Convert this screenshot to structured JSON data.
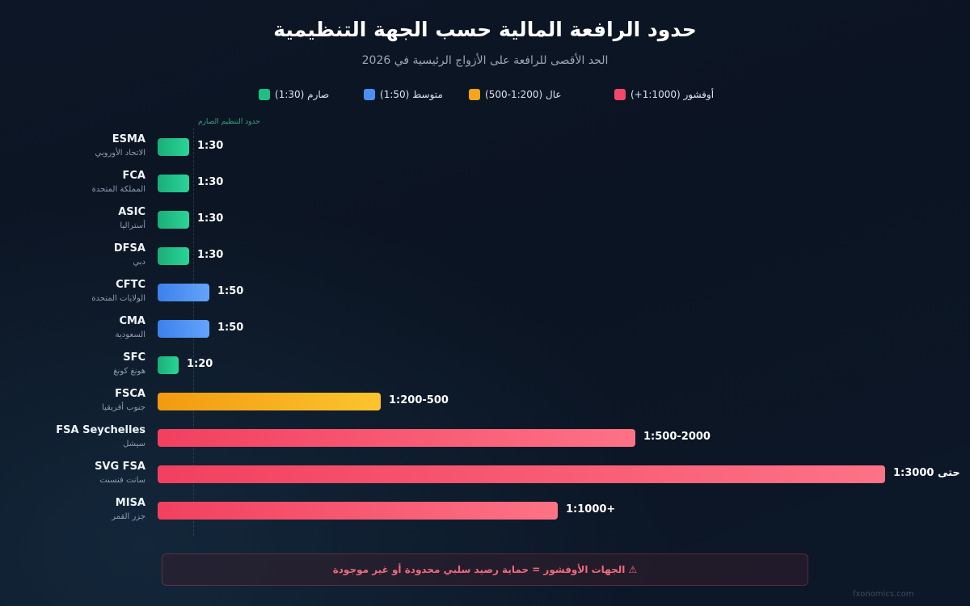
{
  "header": {
    "title": "حدود الرافعة المالية حسب الجهة التنظيمية",
    "subtitle": "الحد الأقصى للرافعة على الأزواج الرئيسية في 2026"
  },
  "legend": [
    {
      "label": "صارم (1:30)",
      "color": "#1fbf83"
    },
    {
      "label": "متوسط (1:50)",
      "color": "#4b8ff3"
    },
    {
      "label": "عال (1:200-500)",
      "color": "#f5a516"
    },
    {
      "label": "أوفشور (1:1000+)",
      "color": "#f2486a"
    }
  ],
  "chart_data": {
    "type": "bar",
    "orientation": "horizontal",
    "reference_line_label": "حدود التنظيم الصارم",
    "reference_value": 30,
    "categories": [
      "ESMA",
      "FCA",
      "ASIC",
      "DFSA",
      "CFTC",
      "CMA",
      "SFC",
      "FSCA",
      "FSA Seychelles",
      "SVG FSA",
      "MISA"
    ],
    "rows": [
      {
        "name": "ESMA",
        "sub": "الاتحاد الأوروبي",
        "value": 30,
        "label": "1:30",
        "tier": "strict"
      },
      {
        "name": "FCA",
        "sub": "المملكة المتحدة",
        "value": 30,
        "label": "1:30",
        "tier": "strict"
      },
      {
        "name": "ASIC",
        "sub": "أستراليا",
        "value": 30,
        "label": "1:30",
        "tier": "strict"
      },
      {
        "name": "DFSA",
        "sub": "دبي",
        "value": 30,
        "label": "1:30",
        "tier": "strict"
      },
      {
        "name": "CFTC",
        "sub": "الولايات المتحدة",
        "value": 50,
        "label": "1:50",
        "tier": "medium"
      },
      {
        "name": "CMA",
        "sub": "السعودية",
        "value": 50,
        "label": "1:50",
        "tier": "medium"
      },
      {
        "name": "SFC",
        "sub": "هونغ كونغ",
        "value": 20,
        "label": "1:20",
        "tier": "strict"
      },
      {
        "name": "FSCA",
        "sub": "جنوب أفريقيا",
        "value": 215,
        "label": "1:200-500",
        "tier": "high"
      },
      {
        "name": "FSA Seychelles",
        "sub": "سيشل",
        "value": 460,
        "label": "1:500-2000",
        "tier": "offshore"
      },
      {
        "name": "SVG FSA",
        "sub": "سانت فنسنت",
        "value": 700,
        "label": "حتى 1:3000",
        "tier": "offshore"
      },
      {
        "name": "MISA",
        "sub": "جزر القمر",
        "value": 385,
        "label": "1:1000+",
        "tier": "offshore"
      }
    ],
    "tier_colors": {
      "strict": [
        "#1aae78",
        "#2bd496"
      ],
      "medium": [
        "#3d80ec",
        "#64a4fb"
      ],
      "high": [
        "#f29a10",
        "#fbc52e"
      ],
      "offshore": [
        "#f2405f",
        "#fd7286"
      ]
    }
  },
  "footer": {
    "warning": "⚠ الجهات الأوفشور = حماية رصيد سلبي محدودة أو غير موجودة"
  },
  "watermark": "fxonomics.com"
}
